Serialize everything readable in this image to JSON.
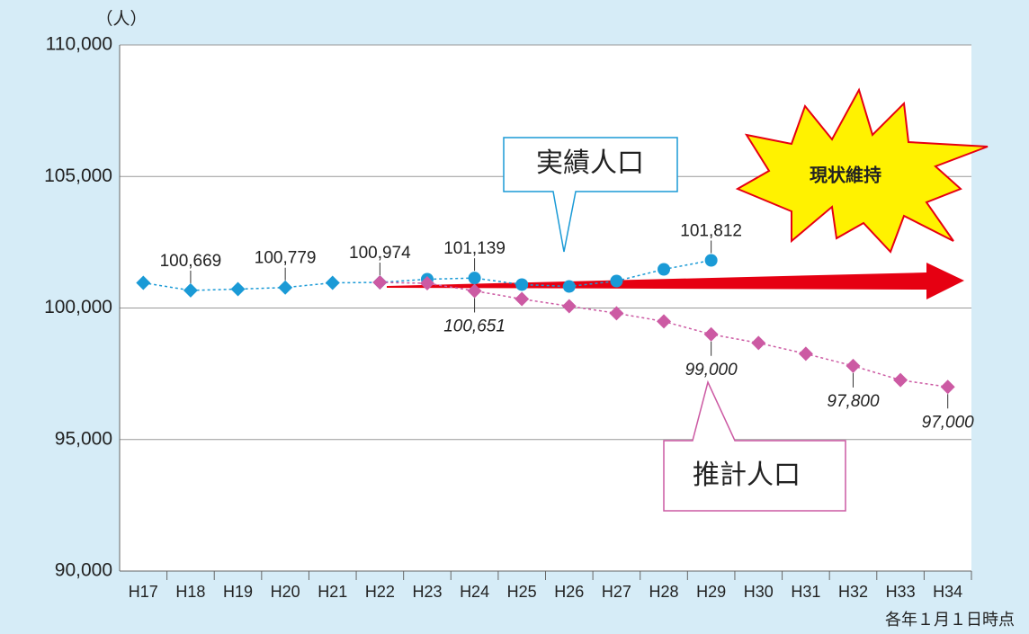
{
  "chart_data": {
    "type": "line",
    "unit_label": "（人）",
    "note": "各年１月１日時点",
    "categories": [
      "H17",
      "H18",
      "H19",
      "H20",
      "H21",
      "H22",
      "H23",
      "H24",
      "H25",
      "H26",
      "H27",
      "H28",
      "H29",
      "H30",
      "H31",
      "H32",
      "H33",
      "H34"
    ],
    "series": [
      {
        "name": "実績人口",
        "color": "#1a9ad6",
        "values": [
          100957,
          100669,
          100718,
          100779,
          100957,
          100974,
          101094,
          101139,
          100890,
          100820,
          101026,
          101470,
          101812,
          null,
          null,
          null,
          null,
          null
        ],
        "value_labels": [
          null,
          "100,669",
          null,
          "100,779",
          null,
          "100,974",
          null,
          "101,139",
          null,
          null,
          null,
          null,
          "101,812",
          null,
          null,
          null,
          null,
          null
        ]
      },
      {
        "name": "推計人口",
        "color": "#cc5aa3",
        "values": [
          null,
          null,
          null,
          null,
          null,
          100974,
          100940,
          100651,
          100340,
          100070,
          99800,
          99490,
          99000,
          98670,
          98260,
          97800,
          97260,
          97000
        ],
        "value_labels": [
          null,
          null,
          null,
          null,
          null,
          null,
          null,
          "100,651",
          null,
          null,
          null,
          null,
          "99,000",
          null,
          null,
          "97,800",
          null,
          "97,000"
        ]
      }
    ],
    "annotation": "現状維持",
    "ylim": [
      90000,
      110000
    ],
    "yticks": [
      {
        "value": 90000,
        "label": "90,000"
      },
      {
        "value": 95000,
        "label": "95,000"
      },
      {
        "value": 100000,
        "label": "100,000"
      },
      {
        "value": 105000,
        "label": "105,000"
      },
      {
        "value": 110000,
        "label": "110,000"
      }
    ],
    "grid": true
  }
}
